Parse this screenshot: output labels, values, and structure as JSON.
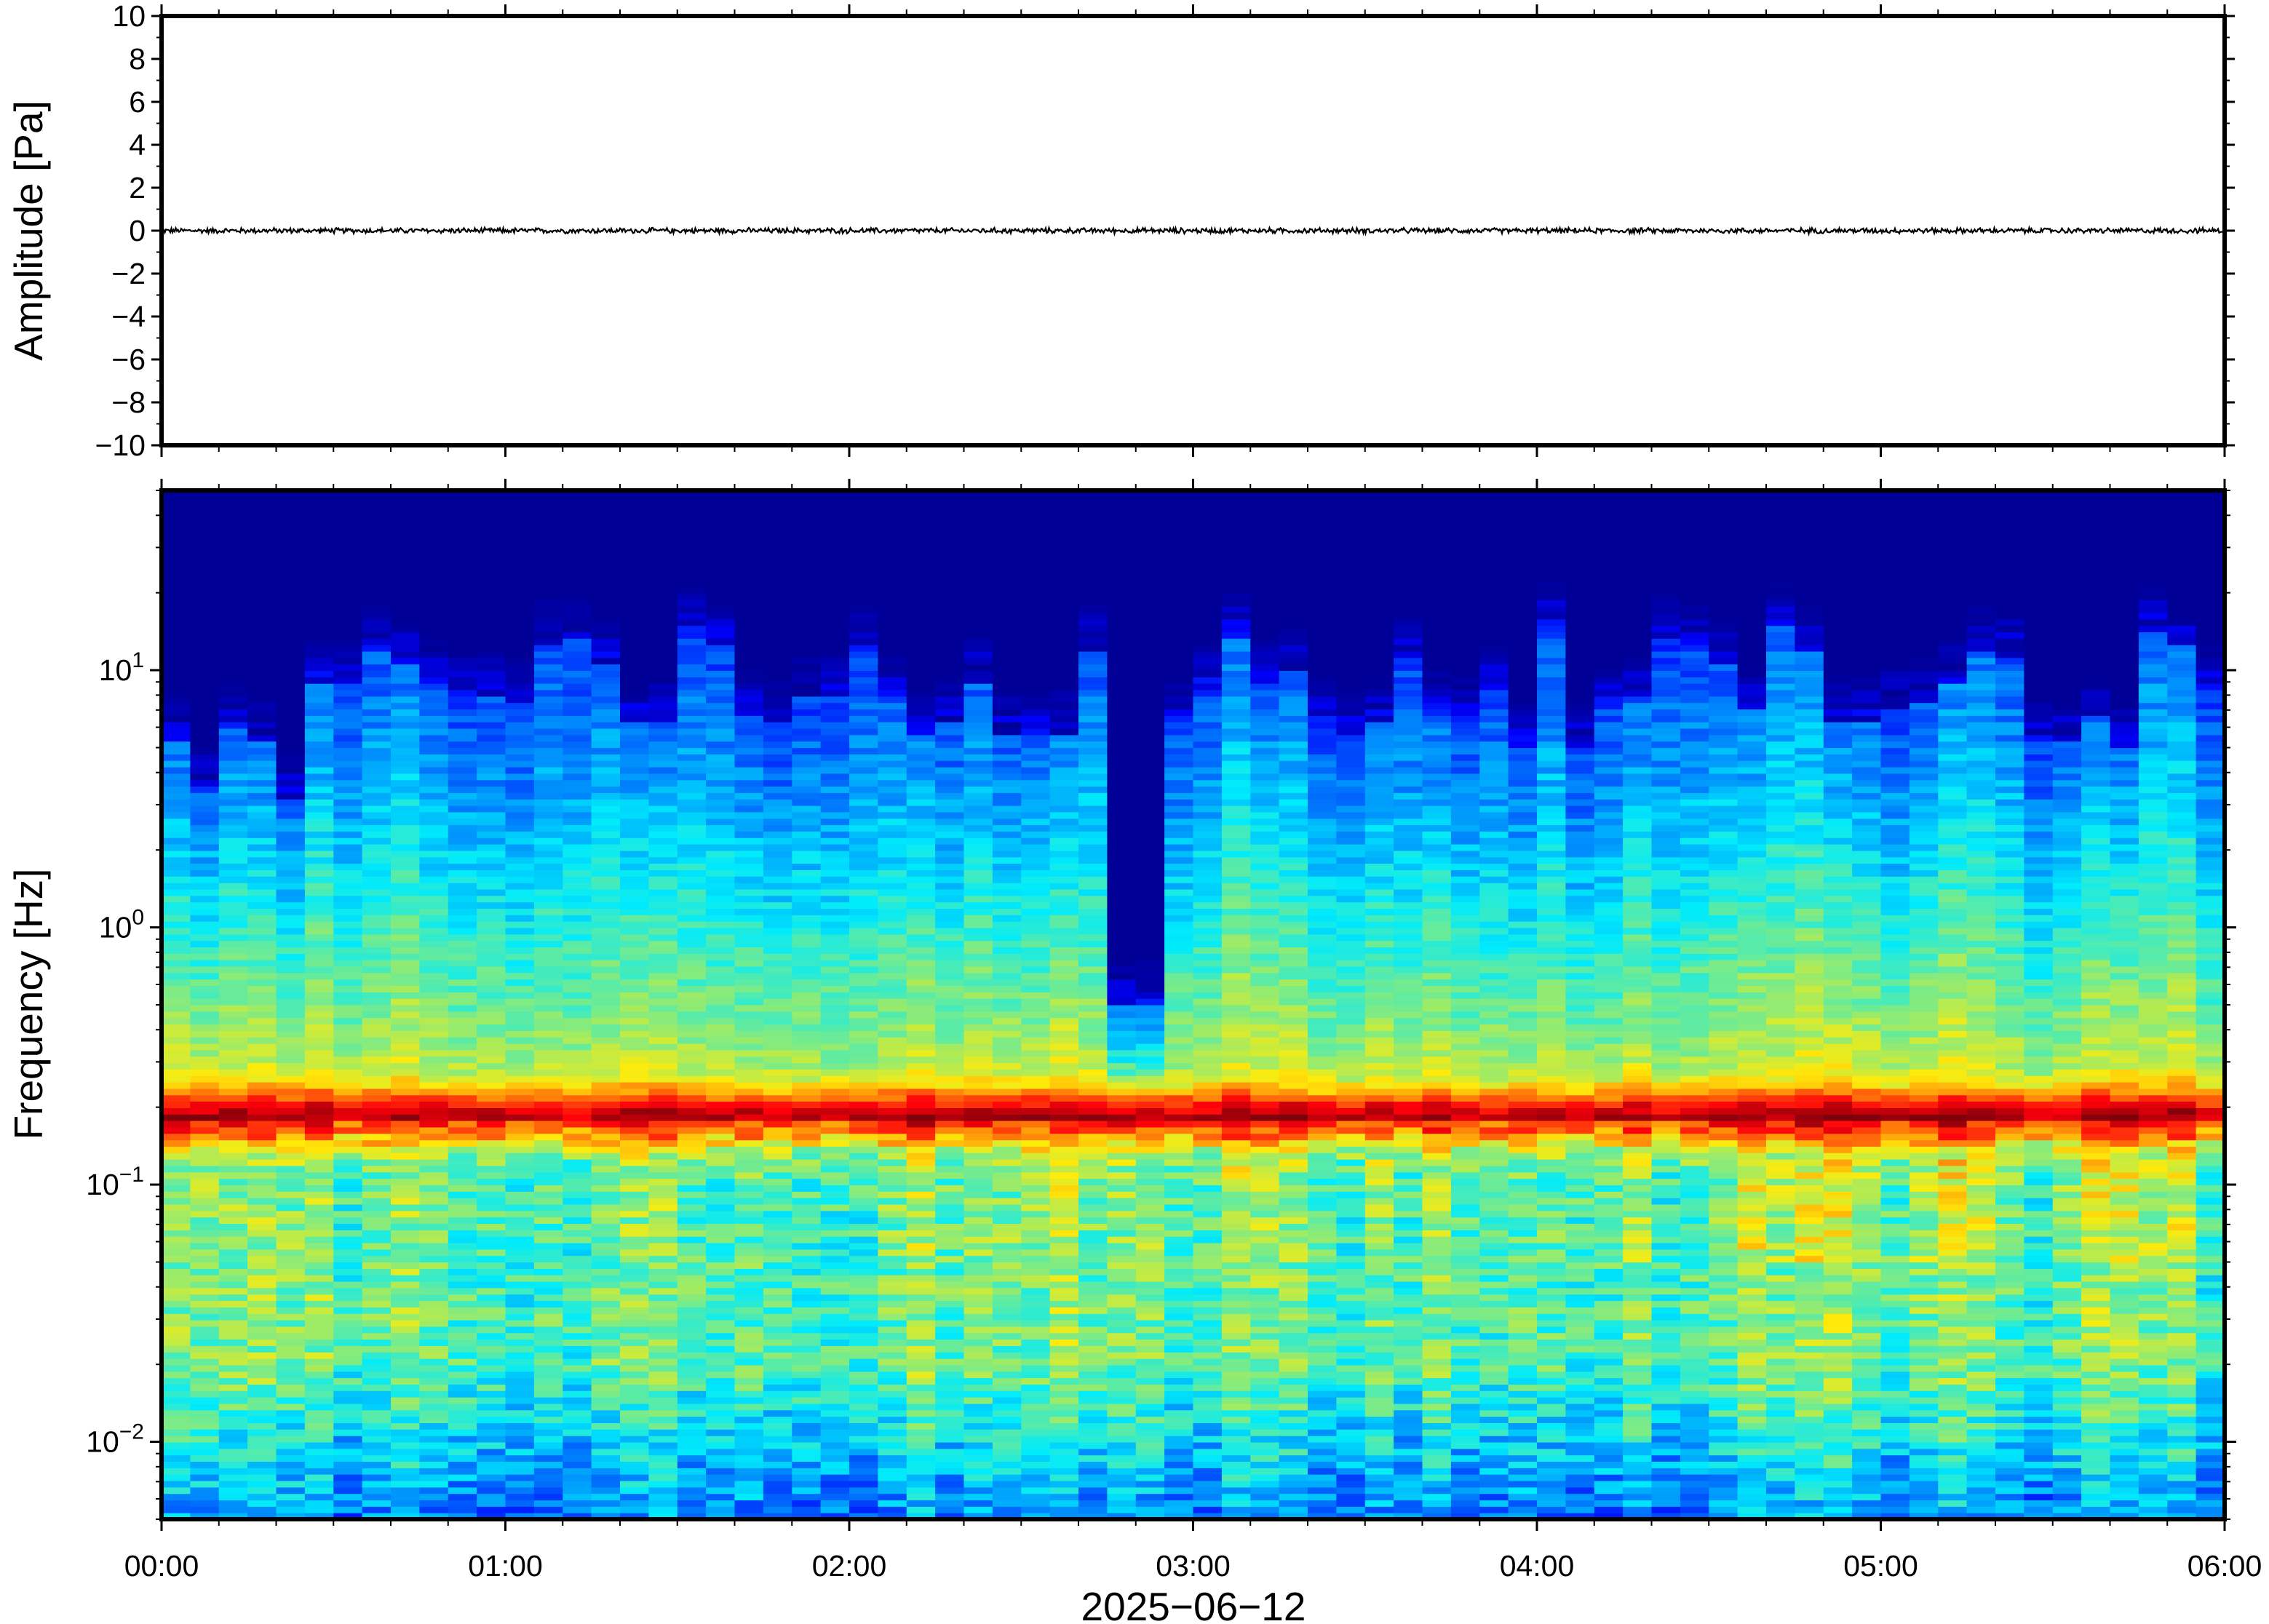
{
  "chart_data": [
    {
      "type": "line",
      "panel": "waveform",
      "ylabel": "Amplitude [Pa]",
      "ylim": [
        -10,
        10
      ],
      "yticks": [
        10,
        8,
        6,
        4,
        2,
        0,
        -2,
        -4,
        -6,
        -8,
        -10
      ],
      "ytick_labels": [
        "10",
        "8",
        "6",
        "4",
        "2",
        "0",
        "−2",
        "−4",
        "−6",
        "−8",
        "−10"
      ],
      "x_range": [
        "00:00",
        "06:00"
      ],
      "series": [
        {
          "values_summary": "noise trace centered at 0, peak amplitude about 0.15 Pa",
          "mean": 0,
          "max_abs": 0.15
        }
      ],
      "line_color": "#000000",
      "grid": false
    },
    {
      "type": "heatmap",
      "panel": "spectrogram",
      "ylabel": "Frequency [Hz]",
      "yscale": "log",
      "ylim": [
        0.005,
        50
      ],
      "yticks": [
        10,
        1,
        0.1,
        0.01
      ],
      "ytick_labels": [
        {
          "base": "10",
          "exp": "1"
        },
        {
          "base": "10",
          "exp": "0"
        },
        {
          "base": "10",
          "exp": "−1"
        },
        {
          "base": "10",
          "exp": "−2"
        }
      ],
      "xlabel": "2025−06−12",
      "x_range_hours": [
        0,
        6
      ],
      "xtick_labels": [
        "00:00",
        "01:00",
        "02:00",
        "03:00",
        "04:00",
        "05:00",
        "06:00"
      ],
      "colormap": "jet",
      "features": {
        "microseism_peak_hz": 0.18,
        "noise_floor_cutoff_hz_range": [
          5,
          15
        ],
        "quiet_interval_hours": [
          2.75,
          2.95
        ]
      },
      "colors": {
        "low": "#0d0070",
        "mid_low": "#1e6ef0",
        "mid": "#3fd6e6",
        "mid_high": "#d8f08a",
        "high": "#f08a2c"
      },
      "grid": false
    }
  ]
}
